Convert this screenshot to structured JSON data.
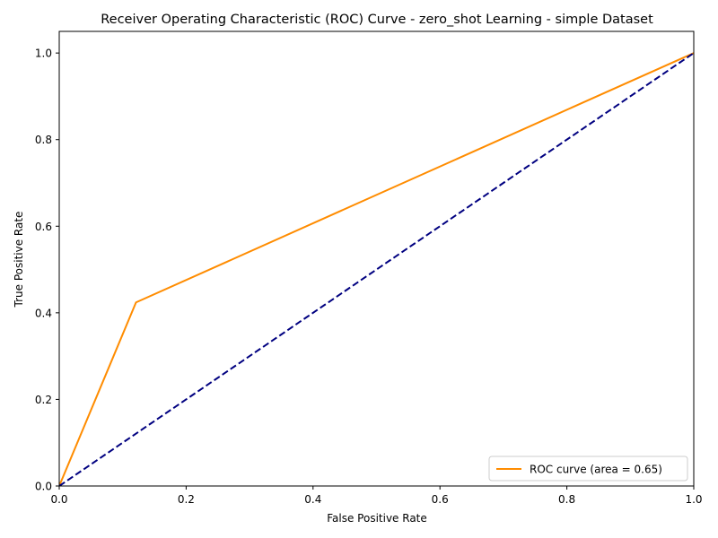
{
  "chart_data": {
    "type": "line",
    "title": "Receiver Operating Characteristic (ROC) Curve - zero_shot Learning - simple Dataset",
    "xlabel": "False Positive Rate",
    "ylabel": "True Positive Rate",
    "xlim": [
      0.0,
      1.0
    ],
    "ylim": [
      0.0,
      1.05
    ],
    "grid": false,
    "legend_position": "lower-right",
    "x_ticks": [
      "0.0",
      "0.2",
      "0.4",
      "0.6",
      "0.8",
      "1.0"
    ],
    "y_ticks": [
      "0.0",
      "0.2",
      "0.4",
      "0.6",
      "0.8",
      "1.0"
    ],
    "series": [
      {
        "name": "ROC curve (area = 0.65)",
        "x": [
          0.0,
          0.121,
          1.0
        ],
        "y": [
          0.0,
          0.424,
          1.0
        ],
        "color": "#ff8c00",
        "style": "solid"
      },
      {
        "x": [
          0.0,
          1.0
        ],
        "y": [
          0.0,
          1.0
        ],
        "color": "#000080",
        "style": "dashed"
      }
    ]
  }
}
